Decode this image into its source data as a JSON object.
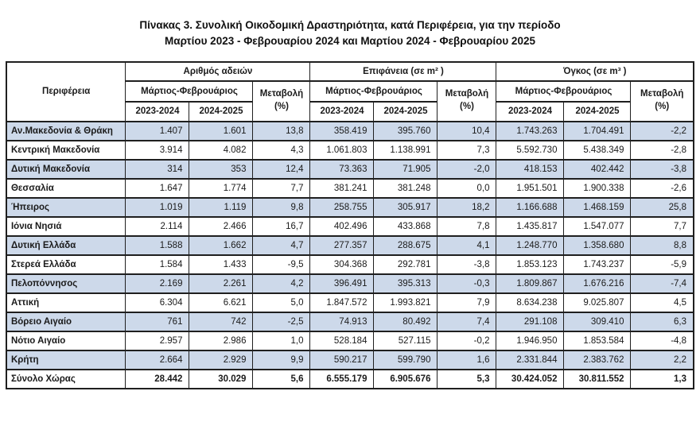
{
  "title": {
    "line1": "Πίνακας 3. Συνολική Οικοδομική Δραστηριότητα, κατά Περιφέρεια, για την περίοδο",
    "line2": "Μαρτίου 2023 - Φεβρουαρίου 2024 και Μαρτίου 2024 - Φεβρουαρίου 2025"
  },
  "colors": {
    "band_blue": "#cdd9ea",
    "border": "#1f1f1f",
    "text": "#1a1a1a"
  },
  "table": {
    "header": {
      "region": "Περιφέρεια",
      "groups": [
        "Αριθμός αδειών",
        "Επιφάνεια (σε m² )",
        "Όγκος (σε m³ )"
      ],
      "period": "Μάρτιος-Φεβρουάριος",
      "change": "Μεταβολή",
      "change_unit": "(%)",
      "years": [
        "2023-2024",
        "2024-2025"
      ]
    },
    "rows": [
      {
        "region": "Αν.Μακεδονία & Θράκη",
        "cells": [
          "1.407",
          "1.601",
          "13,8",
          "358.419",
          "395.760",
          "10,4",
          "1.743.263",
          "1.704.491",
          "-2,2"
        ]
      },
      {
        "region": "Κεντρική Μακεδονία",
        "cells": [
          "3.914",
          "4.082",
          "4,3",
          "1.061.803",
          "1.138.991",
          "7,3",
          "5.592.730",
          "5.438.349",
          "-2,8"
        ]
      },
      {
        "region": "Δυτική Μακεδονία",
        "cells": [
          "314",
          "353",
          "12,4",
          "73.363",
          "71.905",
          "-2,0",
          "418.153",
          "402.442",
          "-3,8"
        ]
      },
      {
        "region": "Θεσσαλία",
        "cells": [
          "1.647",
          "1.774",
          "7,7",
          "381.241",
          "381.248",
          "0,0",
          "1.951.501",
          "1.900.338",
          "-2,6"
        ]
      },
      {
        "region": "Ήπειρος",
        "cells": [
          "1.019",
          "1.119",
          "9,8",
          "258.755",
          "305.917",
          "18,2",
          "1.166.688",
          "1.468.159",
          "25,8"
        ]
      },
      {
        "region": "Ιόνια Νησιά",
        "cells": [
          "2.114",
          "2.466",
          "16,7",
          "402.496",
          "433.868",
          "7,8",
          "1.435.817",
          "1.547.077",
          "7,7"
        ]
      },
      {
        "region": "Δυτική Ελλάδα",
        "cells": [
          "1.588",
          "1.662",
          "4,7",
          "277.357",
          "288.675",
          "4,1",
          "1.248.770",
          "1.358.680",
          "8,8"
        ]
      },
      {
        "region": "Στερεά Ελλάδα",
        "cells": [
          "1.584",
          "1.433",
          "-9,5",
          "304.368",
          "292.781",
          "-3,8",
          "1.853.123",
          "1.743.237",
          "-5,9"
        ]
      },
      {
        "region": "Πελοπόννησος",
        "cells": [
          "2.169",
          "2.261",
          "4,2",
          "396.491",
          "395.313",
          "-0,3",
          "1.809.867",
          "1.676.216",
          "-7,4"
        ]
      },
      {
        "region": "Αττική",
        "cells": [
          "6.304",
          "6.621",
          "5,0",
          "1.847.572",
          "1.993.821",
          "7,9",
          "8.634.238",
          "9.025.807",
          "4,5"
        ]
      },
      {
        "region": "Βόρειο Αιγαίο",
        "cells": [
          "761",
          "742",
          "-2,5",
          "74.913",
          "80.492",
          "7,4",
          "291.108",
          "309.410",
          "6,3"
        ]
      },
      {
        "region": "Νότιο Αιγαίο",
        "cells": [
          "2.957",
          "2.986",
          "1,0",
          "528.184",
          "527.115",
          "-0,2",
          "1.946.950",
          "1.853.584",
          "-4,8"
        ]
      },
      {
        "region": "Κρήτη",
        "cells": [
          "2.664",
          "2.929",
          "9,9",
          "590.217",
          "599.790",
          "1,6",
          "2.331.844",
          "2.383.762",
          "2,2"
        ]
      }
    ],
    "total_row": {
      "region": "Σύνολο Χώρας",
      "cells": [
        "28.442",
        "30.029",
        "5,6",
        "6.555.179",
        "6.905.676",
        "5,3",
        "30.424.052",
        "30.811.552",
        "1,3"
      ]
    }
  }
}
